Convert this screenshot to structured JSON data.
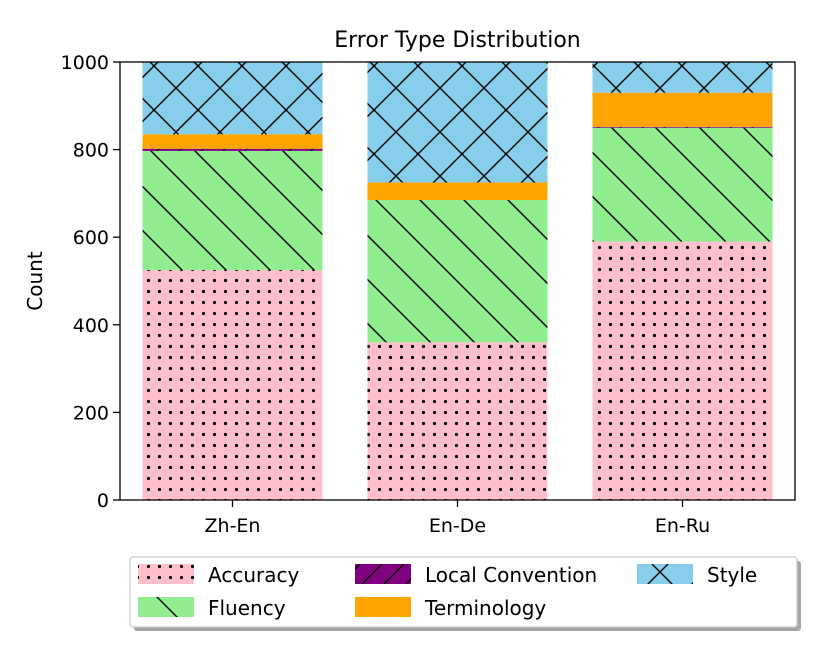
{
  "chart_data": {
    "type": "bar",
    "stacked": true,
    "title": "Error Type Distribution",
    "xlabel": "",
    "ylabel": "Count",
    "ylim": [
      0,
      1000
    ],
    "yticks": [
      0,
      200,
      400,
      600,
      800,
      1000
    ],
    "categories": [
      "Zh-En",
      "En-De",
      "En-Ru"
    ],
    "grid": false,
    "legend_position": "bottom-center",
    "series": [
      {
        "name": "Accuracy",
        "values": [
          525,
          360,
          590
        ],
        "color": "#ffc0cb",
        "hatch": "dots"
      },
      {
        "name": "Fluency",
        "values": [
          272,
          325,
          260
        ],
        "color": "#90ee90",
        "hatch": "backslash"
      },
      {
        "name": "Local Convention",
        "values": [
          5,
          0,
          2
        ],
        "color": "#800080",
        "hatch": "slash"
      },
      {
        "name": "Terminology",
        "values": [
          33,
          40,
          78
        ],
        "color": "#ffa500",
        "hatch": "none"
      },
      {
        "name": "Style",
        "values": [
          165,
          275,
          70
        ],
        "color": "#87ceeb",
        "hatch": "crosshatch"
      }
    ],
    "legend_order": [
      "Accuracy",
      "Local Convention",
      "Style",
      "Fluency",
      "Terminology"
    ]
  }
}
